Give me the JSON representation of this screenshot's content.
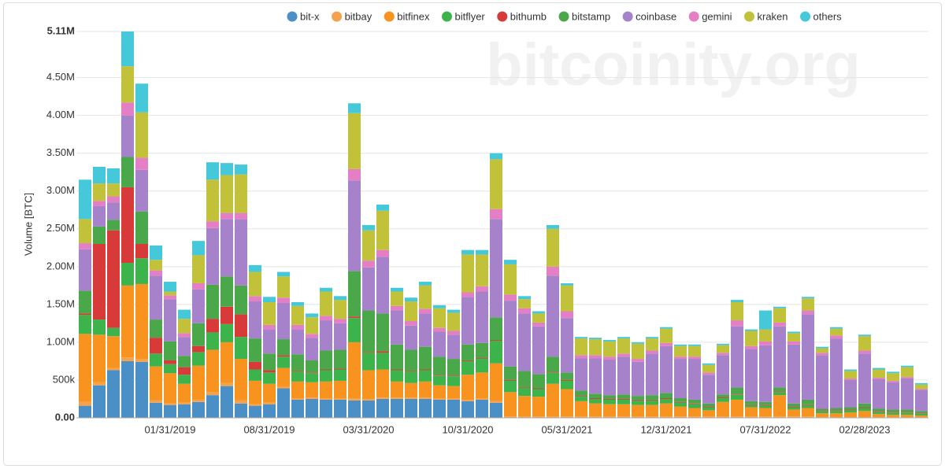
{
  "chart_data": {
    "type": "stacked-bar",
    "watermark": "bitcoinity.org",
    "y_label": "Volume [BTC]",
    "categories": [
      null,
      null,
      null,
      null,
      null,
      null,
      "01/31/2019",
      null,
      null,
      null,
      null,
      null,
      null,
      "08/31/2019",
      null,
      null,
      null,
      null,
      null,
      null,
      "03/31/2020",
      null,
      null,
      null,
      null,
      null,
      null,
      "10/31/2020",
      null,
      null,
      null,
      null,
      null,
      null,
      "05/31/2021",
      null,
      null,
      null,
      null,
      null,
      null,
      "12/31/2021",
      null,
      null,
      null,
      null,
      null,
      null,
      "07/31/2022",
      null,
      null,
      null,
      null,
      null,
      null,
      "02/28/2023",
      null,
      null,
      null,
      null
    ],
    "ylim": [
      0,
      5110000
    ],
    "yticks": [
      {
        "value": 0,
        "label": "0.00"
      },
      {
        "value": 500000,
        "label": "500k"
      },
      {
        "value": 1000000,
        "label": "1.00M"
      },
      {
        "value": 1500000,
        "label": "1.50M"
      },
      {
        "value": 2000000,
        "label": "2.00M"
      },
      {
        "value": 2500000,
        "label": "2.50M"
      },
      {
        "value": 3000000,
        "label": "3.00M"
      },
      {
        "value": 3500000,
        "label": "3.50M"
      },
      {
        "value": 4000000,
        "label": "4.00M"
      },
      {
        "value": 4500000,
        "label": "4.50M"
      },
      {
        "value": 5110000,
        "label": "5.11M"
      }
    ],
    "grid": true,
    "legend": "top",
    "series": [
      {
        "name": "bit-x",
        "color": "#4a8fc6",
        "values": [
          160000,
          430000,
          630000,
          750000,
          740000,
          200000,
          170000,
          180000,
          210000,
          300000,
          420000,
          190000,
          160000,
          180000,
          390000,
          240000,
          250000,
          240000,
          240000,
          230000,
          230000,
          250000,
          250000,
          250000,
          250000,
          240000,
          240000,
          220000,
          240000,
          200000,
          0,
          0,
          0,
          0,
          0,
          0,
          0,
          0,
          0,
          0,
          0,
          0,
          0,
          0,
          0,
          0,
          0,
          0,
          0,
          0,
          0,
          0,
          0,
          0,
          0,
          0,
          0,
          0,
          0,
          0
        ]
      },
      {
        "name": "bitbay",
        "color": "#f5a24e",
        "values": [
          50000,
          40000,
          30000,
          50000,
          40000,
          30000,
          20000,
          20000,
          30000,
          40000,
          40000,
          40000,
          20000,
          20000,
          20000,
          20000,
          20000,
          20000,
          20000,
          30000,
          20000,
          20000,
          20000,
          20000,
          20000,
          20000,
          20000,
          20000,
          20000,
          20000,
          20000,
          20000,
          20000,
          20000,
          20000,
          20000,
          20000,
          20000,
          20000,
          20000,
          20000,
          20000,
          20000,
          20000,
          20000,
          20000,
          20000,
          20000,
          20000,
          20000,
          20000,
          20000,
          10000,
          10000,
          10000,
          10000,
          10000,
          10000,
          10000,
          10000
        ]
      },
      {
        "name": "bitfinex",
        "color": "#f7931e",
        "values": [
          900000,
          630000,
          420000,
          950000,
          990000,
          450000,
          400000,
          250000,
          450000,
          560000,
          540000,
          550000,
          310000,
          250000,
          250000,
          220000,
          200000,
          220000,
          230000,
          740000,
          380000,
          370000,
          210000,
          190000,
          210000,
          170000,
          160000,
          330000,
          340000,
          500000,
          320000,
          270000,
          260000,
          430000,
          360000,
          200000,
          170000,
          160000,
          160000,
          150000,
          150000,
          170000,
          130000,
          110000,
          80000,
          190000,
          220000,
          120000,
          110000,
          280000,
          90000,
          110000,
          50000,
          50000,
          60000,
          80000,
          40000,
          30000,
          30000,
          20000
        ]
      },
      {
        "name": "bitflyer",
        "color": "#3cb44b",
        "values": [
          250000,
          200000,
          110000,
          300000,
          340000,
          170000,
          120000,
          120000,
          180000,
          230000,
          240000,
          290000,
          150000,
          150000,
          150000,
          130000,
          120000,
          150000,
          150000,
          320000,
          230000,
          220000,
          150000,
          150000,
          150000,
          130000,
          130000,
          180000,
          180000,
          300000,
          150000,
          110000,
          100000,
          150000,
          110000,
          60000,
          60000,
          60000,
          60000,
          60000,
          60000,
          60000,
          50000,
          50000,
          40000,
          50000,
          70000,
          30000,
          30000,
          40000,
          30000,
          40000,
          30000,
          30000,
          30000,
          40000,
          30000,
          30000,
          30000,
          30000
        ]
      },
      {
        "name": "bithumb",
        "color": "#d83a3a",
        "values": [
          20000,
          1000000,
          1290000,
          1000000,
          190000,
          210000,
          50000,
          100000,
          80000,
          180000,
          230000,
          300000,
          100000,
          30000,
          20000,
          10000,
          10000,
          10000,
          10000,
          20000,
          10000,
          20000,
          10000,
          10000,
          10000,
          10000,
          10000,
          10000,
          10000,
          10000,
          10000,
          10000,
          10000,
          10000,
          10000,
          10000,
          10000,
          10000,
          10000,
          10000,
          10000,
          10000,
          10000,
          10000,
          10000,
          10000,
          10000,
          10000,
          10000,
          10000,
          10000,
          10000,
          10000,
          10000,
          10000,
          10000,
          10000,
          10000,
          10000,
          10000
        ]
      },
      {
        "name": "bitstamp",
        "color": "#4aa84a",
        "values": [
          300000,
          230000,
          140000,
          400000,
          430000,
          240000,
          250000,
          150000,
          300000,
          450000,
          400000,
          380000,
          310000,
          220000,
          210000,
          220000,
          160000,
          250000,
          250000,
          600000,
          550000,
          500000,
          330000,
          280000,
          300000,
          240000,
          220000,
          210000,
          200000,
          300000,
          180000,
          210000,
          190000,
          200000,
          100000,
          70000,
          60000,
          50000,
          60000,
          50000,
          60000,
          70000,
          50000,
          50000,
          40000,
          40000,
          80000,
          40000,
          40000,
          50000,
          40000,
          60000,
          20000,
          30000,
          30000,
          50000,
          30000,
          30000,
          30000,
          20000
        ]
      },
      {
        "name": "coinbase",
        "color": "#a682cb",
        "values": [
          550000,
          270000,
          230000,
          550000,
          550000,
          580000,
          560000,
          250000,
          450000,
          750000,
          760000,
          880000,
          490000,
          320000,
          480000,
          330000,
          300000,
          400000,
          350000,
          1200000,
          570000,
          750000,
          450000,
          320000,
          440000,
          330000,
          320000,
          630000,
          680000,
          1300000,
          870000,
          760000,
          630000,
          1070000,
          720000,
          430000,
          470000,
          470000,
          500000,
          450000,
          550000,
          620000,
          520000,
          540000,
          380000,
          520000,
          810000,
          690000,
          750000,
          810000,
          780000,
          1130000,
          710000,
          920000,
          360000,
          660000,
          390000,
          360000,
          410000,
          280000
        ]
      },
      {
        "name": "gemini",
        "color": "#e47fc6",
        "values": [
          80000,
          70000,
          80000,
          170000,
          160000,
          70000,
          50000,
          50000,
          80000,
          90000,
          80000,
          80000,
          70000,
          60000,
          70000,
          60000,
          50000,
          60000,
          60000,
          150000,
          90000,
          90000,
          60000,
          60000,
          60000,
          50000,
          50000,
          60000,
          70000,
          130000,
          80000,
          70000,
          50000,
          120000,
          90000,
          40000,
          40000,
          40000,
          40000,
          40000,
          40000,
          40000,
          30000,
          30000,
          30000,
          30000,
          80000,
          40000,
          50000,
          50000,
          40000,
          50000,
          30000,
          40000,
          20000,
          40000,
          20000,
          20000,
          20000,
          10000
        ]
      },
      {
        "name": "kraken",
        "color": "#c2c23a",
        "values": [
          320000,
          230000,
          170000,
          480000,
          600000,
          140000,
          50000,
          190000,
          370000,
          550000,
          500000,
          510000,
          320000,
          300000,
          280000,
          250000,
          220000,
          320000,
          250000,
          740000,
          400000,
          520000,
          190000,
          260000,
          310000,
          260000,
          240000,
          500000,
          420000,
          660000,
          400000,
          120000,
          120000,
          500000,
          340000,
          220000,
          210000,
          200000,
          200000,
          200000,
          160000,
          190000,
          140000,
          140000,
          100000,
          100000,
          240000,
          200000,
          160000,
          190000,
          110000,
          160000,
          60000,
          90000,
          100000,
          190000,
          110000,
          100000,
          130000,
          60000
        ]
      },
      {
        "name": "others",
        "color": "#45c8da",
        "values": [
          520000,
          220000,
          200000,
          460000,
          380000,
          190000,
          130000,
          120000,
          190000,
          230000,
          160000,
          130000,
          90000,
          70000,
          60000,
          50000,
          50000,
          50000,
          50000,
          130000,
          70000,
          80000,
          50000,
          50000,
          50000,
          40000,
          40000,
          60000,
          60000,
          80000,
          60000,
          40000,
          30000,
          50000,
          30000,
          20000,
          20000,
          20000,
          20000,
          20000,
          20000,
          20000,
          20000,
          20000,
          20000,
          20000,
          30000,
          20000,
          250000,
          20000,
          20000,
          20000,
          20000,
          20000,
          20000,
          20000,
          20000,
          20000,
          20000,
          20000
        ]
      }
    ]
  }
}
